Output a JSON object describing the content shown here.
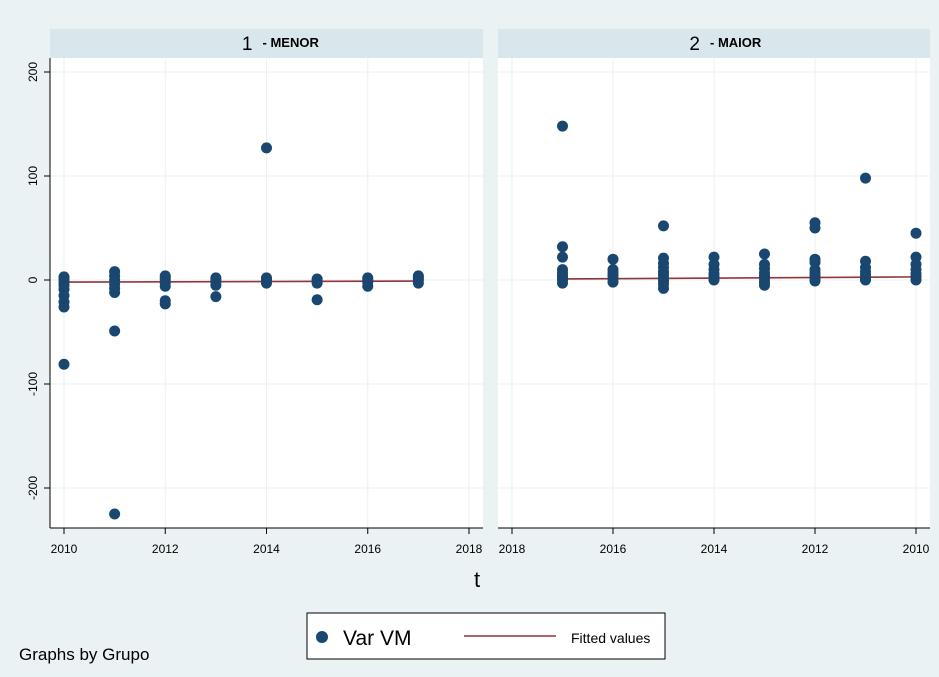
{
  "chart_data": {
    "type": "scatter",
    "x_title": "t",
    "note": "Graphs by Grupo",
    "y_ticks": [
      200,
      100,
      0,
      -100,
      -200
    ],
    "y_ticklabels": [
      "200",
      "100",
      "0",
      "-100",
      "-200"
    ],
    "ylim": [
      -237,
      200
    ],
    "colors": {
      "marker": "#1a476f",
      "fit": "#90353b",
      "plot_bg": "#ffffff",
      "strip_bg": "#d9e6eb",
      "grid": "#eaf2f3",
      "outer_bg": "#eaf2f3"
    },
    "legend": {
      "position": "bottom",
      "entries": [
        {
          "label": "Var VM",
          "symbol": "marker"
        },
        {
          "label": "Fitted values",
          "symbol": "line"
        }
      ]
    },
    "panels": [
      {
        "number": "1",
        "label": "- MENOR",
        "xlim": [
          2010,
          2018
        ],
        "x_ticks": [
          2010,
          2012,
          2014,
          2016,
          2018
        ],
        "x_ticklabels": [
          "2010",
          "2012",
          "2014",
          "2016",
          "2018"
        ],
        "reversed": false,
        "fit": {
          "x": [
            2010,
            2017
          ],
          "y": [
            -2,
            -1
          ]
        },
        "points": [
          [
            2010,
            3
          ],
          [
            2010,
            1
          ],
          [
            2010,
            -2
          ],
          [
            2010,
            -5
          ],
          [
            2010,
            -9
          ],
          [
            2010,
            -15
          ],
          [
            2010,
            -21
          ],
          [
            2010,
            -26
          ],
          [
            2010,
            -81
          ],
          [
            2011,
            8
          ],
          [
            2011,
            4
          ],
          [
            2011,
            0
          ],
          [
            2011,
            -4
          ],
          [
            2011,
            -8
          ],
          [
            2011,
            -12
          ],
          [
            2011,
            -49
          ],
          [
            2011,
            -225
          ],
          [
            2012,
            4
          ],
          [
            2012,
            2
          ],
          [
            2012,
            0
          ],
          [
            2012,
            -3
          ],
          [
            2012,
            -6
          ],
          [
            2012,
            -20
          ],
          [
            2012,
            -23
          ],
          [
            2013,
            2
          ],
          [
            2013,
            0
          ],
          [
            2013,
            -2
          ],
          [
            2013,
            -5
          ],
          [
            2013,
            -16
          ],
          [
            2014,
            127
          ],
          [
            2014,
            2
          ],
          [
            2014,
            0
          ],
          [
            2014,
            -3
          ],
          [
            2015,
            1
          ],
          [
            2015,
            -1
          ],
          [
            2015,
            -3
          ],
          [
            2015,
            -19
          ],
          [
            2016,
            2
          ],
          [
            2016,
            0
          ],
          [
            2016,
            -2
          ],
          [
            2016,
            -6
          ],
          [
            2017,
            4
          ],
          [
            2017,
            2
          ],
          [
            2017,
            0
          ],
          [
            2017,
            -3
          ]
        ]
      },
      {
        "number": "2",
        "label": "- MAIOR",
        "xlim": [
          2010,
          2018
        ],
        "x_ticks": [
          2018,
          2016,
          2014,
          2012,
          2010
        ],
        "x_ticklabels": [
          "2018",
          "2016",
          "2014",
          "2012",
          "2010"
        ],
        "reversed": true,
        "fit": {
          "x": [
            2017,
            2010
          ],
          "y": [
            1,
            3
          ]
        },
        "points": [
          [
            2017,
            148
          ],
          [
            2017,
            32
          ],
          [
            2017,
            22
          ],
          [
            2017,
            10
          ],
          [
            2017,
            7
          ],
          [
            2017,
            4
          ],
          [
            2017,
            2
          ],
          [
            2017,
            0
          ],
          [
            2017,
            -3
          ],
          [
            2016,
            20
          ],
          [
            2016,
            10
          ],
          [
            2016,
            7
          ],
          [
            2016,
            4
          ],
          [
            2016,
            1
          ],
          [
            2016,
            -2
          ],
          [
            2015,
            52
          ],
          [
            2015,
            21
          ],
          [
            2015,
            16
          ],
          [
            2015,
            12
          ],
          [
            2015,
            8
          ],
          [
            2015,
            5
          ],
          [
            2015,
            2
          ],
          [
            2015,
            -1
          ],
          [
            2015,
            -4
          ],
          [
            2015,
            -8
          ],
          [
            2014,
            22
          ],
          [
            2014,
            15
          ],
          [
            2014,
            10
          ],
          [
            2014,
            6
          ],
          [
            2014,
            3
          ],
          [
            2014,
            0
          ],
          [
            2013,
            25
          ],
          [
            2013,
            15
          ],
          [
            2013,
            11
          ],
          [
            2013,
            7
          ],
          [
            2013,
            4
          ],
          [
            2013,
            1
          ],
          [
            2013,
            -2
          ],
          [
            2013,
            -5
          ],
          [
            2012,
            55
          ],
          [
            2012,
            50
          ],
          [
            2012,
            20
          ],
          [
            2012,
            17
          ],
          [
            2012,
            10
          ],
          [
            2012,
            7
          ],
          [
            2012,
            4
          ],
          [
            2012,
            1
          ],
          [
            2012,
            -1
          ],
          [
            2011,
            98
          ],
          [
            2011,
            18
          ],
          [
            2011,
            12
          ],
          [
            2011,
            8
          ],
          [
            2011,
            5
          ],
          [
            2011,
            2
          ],
          [
            2011,
            0
          ],
          [
            2010,
            45
          ],
          [
            2010,
            22
          ],
          [
            2010,
            15
          ],
          [
            2010,
            10
          ],
          [
            2010,
            6
          ],
          [
            2010,
            3
          ],
          [
            2010,
            0
          ]
        ]
      }
    ]
  }
}
